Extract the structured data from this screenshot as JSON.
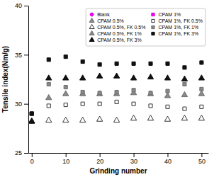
{
  "chart_data": {
    "type": "scatter",
    "x_label": "Grinding number",
    "y_label": "Tensile index(Nm/g)",
    "x": [
      0,
      5,
      10,
      15,
      20,
      25,
      30,
      35,
      40,
      45,
      50
    ],
    "series": [
      {
        "name": "Blank",
        "color": "#ff00ff",
        "marker": "circle",
        "values": [
          28.2,
          null,
          null,
          null,
          null,
          null,
          null,
          null,
          null,
          null,
          null
        ]
      },
      {
        "name": "CPAM 0.5%",
        "color": "#888888",
        "marker": "triangle",
        "values": [
          28.2,
          null,
          null,
          null,
          null,
          null,
          null,
          null,
          null,
          null,
          null
        ]
      },
      {
        "name": "CPAM 0.5%, FK 0.5%",
        "color": "#333333",
        "marker": "open-triangle",
        "values": [
          28.2,
          28.3,
          28.3,
          28.3,
          28.4,
          28.3,
          28.5,
          28.5,
          28.4,
          28.5,
          28.5
        ]
      },
      {
        "name": "CPAM 0.5%, FK 1%",
        "color": "#888888",
        "marker": "triangle",
        "values": [
          28.2,
          30.6,
          31.0,
          31.0,
          31.0,
          31.0,
          31.1,
          31.0,
          30.8,
          30.9,
          31.0
        ]
      },
      {
        "name": "CPAM 0.5%, FK 3%",
        "color": "#111111",
        "marker": "triangle",
        "values": [
          28.2,
          32.6,
          32.6,
          32.6,
          32.8,
          32.8,
          32.6,
          32.7,
          32.6,
          32.5,
          32.6
        ]
      },
      {
        "name": "CPAM 1%",
        "color": "#ff00ff",
        "marker": "square",
        "values": [
          29.0,
          null,
          null,
          null,
          null,
          null,
          null,
          null,
          null,
          null,
          null
        ]
      },
      {
        "name": "CPAM 1%, FK 0.5%",
        "color": "#333333",
        "marker": "open-square",
        "values": [
          29.0,
          29.8,
          29.9,
          30.0,
          30.0,
          30.2,
          30.0,
          29.8,
          29.7,
          29.5,
          29.7
        ]
      },
      {
        "name": "CPAM 1%, FK 1%",
        "color": "#888888",
        "marker": "square",
        "values": [
          29.0,
          32.0,
          31.7,
          31.2,
          31.1,
          31.2,
          31.4,
          31.1,
          31.3,
          32.0,
          31.5
        ]
      },
      {
        "name": "CPAM 1%, FK 3%",
        "color": "#111111",
        "marker": "square",
        "values": [
          29.0,
          34.5,
          34.8,
          34.3,
          34.0,
          34.1,
          34.1,
          34.1,
          34.1,
          33.7,
          34.2
        ]
      }
    ],
    "xlim": [
      -1,
      52
    ],
    "ylim": [
      25,
      40
    ],
    "xticks": [
      0,
      10,
      20,
      30,
      40,
      50
    ],
    "yticks": [
      25,
      30,
      35,
      40
    ],
    "grid": false,
    "legend": "upper-right"
  }
}
